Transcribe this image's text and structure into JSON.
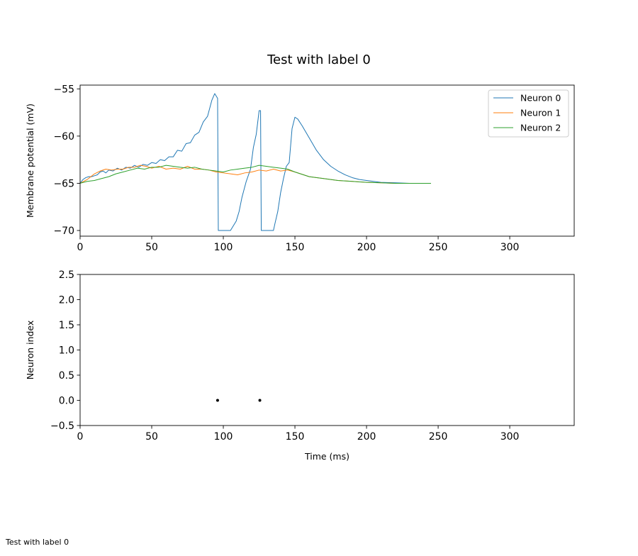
{
  "figure": {
    "title": "Test with label 0",
    "caption": "Test with label 0"
  },
  "chart_data": [
    {
      "type": "line",
      "xlabel": "",
      "ylabel": "Membrane potential (mV)",
      "xlim": [
        0,
        345
      ],
      "ylim": [
        -70.6,
        -54.6
      ],
      "xticks": [
        0,
        50,
        100,
        150,
        200,
        250,
        300
      ],
      "xtick_labels": [
        "0",
        "50",
        "100",
        "150",
        "200",
        "250",
        "300"
      ],
      "yticks": [
        -70,
        -65,
        -60,
        -55
      ],
      "ytick_labels": [
        "−70",
        "−65",
        "−60",
        "−55"
      ],
      "grid": false,
      "legend": "top-right",
      "series": [
        {
          "name": "Neuron 0",
          "color": "#1f77b4",
          "x": [
            0,
            2,
            4,
            6,
            8,
            10,
            12,
            14,
            16,
            18,
            20,
            23,
            26,
            29,
            32,
            35,
            38,
            41,
            44,
            47,
            50,
            53,
            56,
            59,
            62,
            65,
            68,
            71,
            74,
            77,
            80,
            83,
            86,
            89,
            92,
            94,
            96,
            96.5,
            100,
            105,
            109,
            111,
            113,
            116,
            119,
            121,
            123,
            125,
            126,
            126.5,
            130,
            135,
            136,
            138,
            140,
            142,
            144,
            146,
            148,
            150,
            152,
            155,
            160,
            165,
            170,
            175,
            180,
            185,
            190,
            195,
            200,
            210,
            220,
            230,
            240,
            245
          ],
          "y": [
            -65,
            -64.6,
            -64.4,
            -64.3,
            -64.3,
            -64.2,
            -64.1,
            -63.8,
            -63.7,
            -63.9,
            -63.6,
            -63.7,
            -63.4,
            -63.6,
            -63.3,
            -63.4,
            -63.1,
            -63.3,
            -63.0,
            -63.1,
            -62.8,
            -62.9,
            -62.5,
            -62.6,
            -62.2,
            -62.2,
            -61.5,
            -61.6,
            -60.8,
            -60.7,
            -59.9,
            -59.6,
            -58.5,
            -57.9,
            -56.2,
            -55.5,
            -56.0,
            -70.0,
            -70.0,
            -70.0,
            -69.0,
            -68.0,
            -66.5,
            -64.8,
            -63.5,
            -61.2,
            -59.8,
            -57.3,
            -57.3,
            -70.0,
            -70.0,
            -70.0,
            -69.3,
            -68.0,
            -66.0,
            -64.5,
            -63.2,
            -62.8,
            -59.2,
            -58.0,
            -58.2,
            -58.9,
            -60.2,
            -61.5,
            -62.5,
            -63.2,
            -63.7,
            -64.1,
            -64.4,
            -64.6,
            -64.7,
            -64.9,
            -64.95,
            -65.0,
            -65.0,
            -65.0
          ]
        },
        {
          "name": "Neuron 1",
          "color": "#ff7f0e",
          "x": [
            0,
            5,
            10,
            14,
            18,
            22,
            26,
            30,
            34,
            38,
            42,
            46,
            50,
            55,
            60,
            65,
            70,
            75,
            80,
            85,
            90,
            95,
            100,
            105,
            110,
            115,
            120,
            125,
            130,
            135,
            140,
            145,
            150,
            160,
            170,
            180,
            190,
            200,
            210,
            220,
            230,
            245
          ],
          "y": [
            -65,
            -64.6,
            -64.0,
            -63.7,
            -63.5,
            -63.6,
            -63.5,
            -63.5,
            -63.3,
            -63.3,
            -63.1,
            -63.2,
            -63.4,
            -63.2,
            -63.5,
            -63.4,
            -63.5,
            -63.2,
            -63.5,
            -63.5,
            -63.6,
            -63.8,
            -63.9,
            -64.0,
            -64.1,
            -63.9,
            -63.8,
            -63.6,
            -63.7,
            -63.5,
            -63.7,
            -63.6,
            -63.8,
            -64.3,
            -64.5,
            -64.7,
            -64.8,
            -64.9,
            -64.95,
            -65.0,
            -65.0,
            -65.0
          ]
        },
        {
          "name": "Neuron 2",
          "color": "#2ca02c",
          "x": [
            0,
            5,
            10,
            15,
            20,
            25,
            30,
            35,
            40,
            45,
            50,
            55,
            60,
            65,
            70,
            75,
            80,
            85,
            90,
            95,
            100,
            105,
            110,
            115,
            120,
            125,
            130,
            135,
            140,
            145,
            150,
            160,
            170,
            180,
            190,
            200,
            210,
            220,
            230,
            245
          ],
          "y": [
            -65,
            -64.8,
            -64.7,
            -64.5,
            -64.3,
            -64.0,
            -63.8,
            -63.6,
            -63.4,
            -63.5,
            -63.3,
            -63.3,
            -63.1,
            -63.2,
            -63.3,
            -63.4,
            -63.3,
            -63.5,
            -63.6,
            -63.7,
            -63.8,
            -63.6,
            -63.5,
            -63.4,
            -63.3,
            -63.1,
            -63.2,
            -63.3,
            -63.4,
            -63.5,
            -63.8,
            -64.3,
            -64.5,
            -64.7,
            -64.8,
            -64.9,
            -64.95,
            -65.0,
            -65.0,
            -65.0
          ]
        }
      ]
    },
    {
      "type": "scatter",
      "xlabel": "Time (ms)",
      "ylabel": "Neuron index",
      "xlim": [
        0,
        345
      ],
      "ylim": [
        -0.5,
        2.5
      ],
      "xticks": [
        0,
        50,
        100,
        150,
        200,
        250,
        300
      ],
      "xtick_labels": [
        "0",
        "50",
        "100",
        "150",
        "200",
        "250",
        "300"
      ],
      "yticks": [
        -0.5,
        0.0,
        0.5,
        1.0,
        1.5,
        2.0,
        2.5
      ],
      "ytick_labels": [
        "−0.5",
        "0.0",
        "0.5",
        "1.0",
        "1.5",
        "2.0",
        "2.5"
      ],
      "grid": false,
      "series": [
        {
          "color": "#000000",
          "x": [
            96,
            125.5
          ],
          "y": [
            0,
            0
          ]
        }
      ]
    }
  ]
}
